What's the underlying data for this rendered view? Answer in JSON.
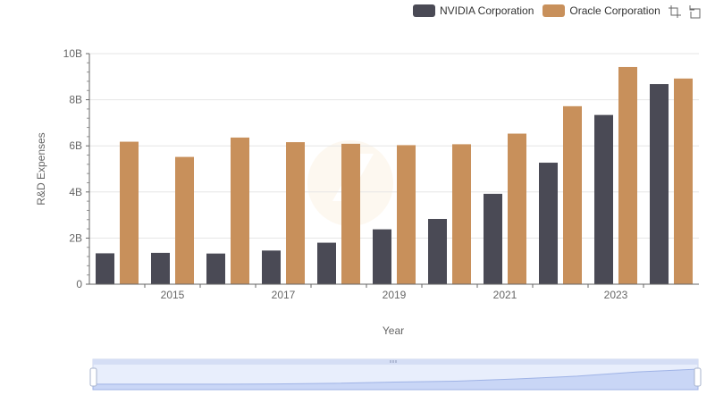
{
  "legend": [
    {
      "name": "NVIDIA Corporation",
      "color": "#4a4a55"
    },
    {
      "name": "Oracle Corporation",
      "color": "#c8905b"
    }
  ],
  "toolbox": {
    "icons": [
      "zoom-icon",
      "restore-icon"
    ]
  },
  "chart_data": {
    "type": "bar",
    "x": [
      2014,
      2015,
      2016,
      2017,
      2018,
      2019,
      2020,
      2021,
      2022,
      2023,
      2024
    ],
    "x_tick_labels": [
      "2015",
      "2017",
      "2019",
      "2021",
      "2023"
    ],
    "series": [
      {
        "name": "NVIDIA Corporation",
        "color": "#4a4a55",
        "values": [
          1.34,
          1.36,
          1.33,
          1.46,
          1.8,
          2.38,
          2.83,
          3.92,
          5.27,
          7.34,
          8.68
        ]
      },
      {
        "name": "Oracle Corporation",
        "color": "#c8905b",
        "values": [
          6.18,
          5.52,
          6.36,
          6.16,
          6.09,
          6.03,
          6.07,
          6.53,
          7.72,
          9.42,
          8.92
        ]
      }
    ],
    "xlabel": "Year",
    "ylabel": "R&D Expenses",
    "y_tick_labels": [
      "0",
      "2B",
      "4B",
      "6B",
      "8B",
      "10B"
    ],
    "ylim": [
      0,
      10
    ],
    "grid": true,
    "legend_position": "top-right",
    "data_zoom": true
  }
}
